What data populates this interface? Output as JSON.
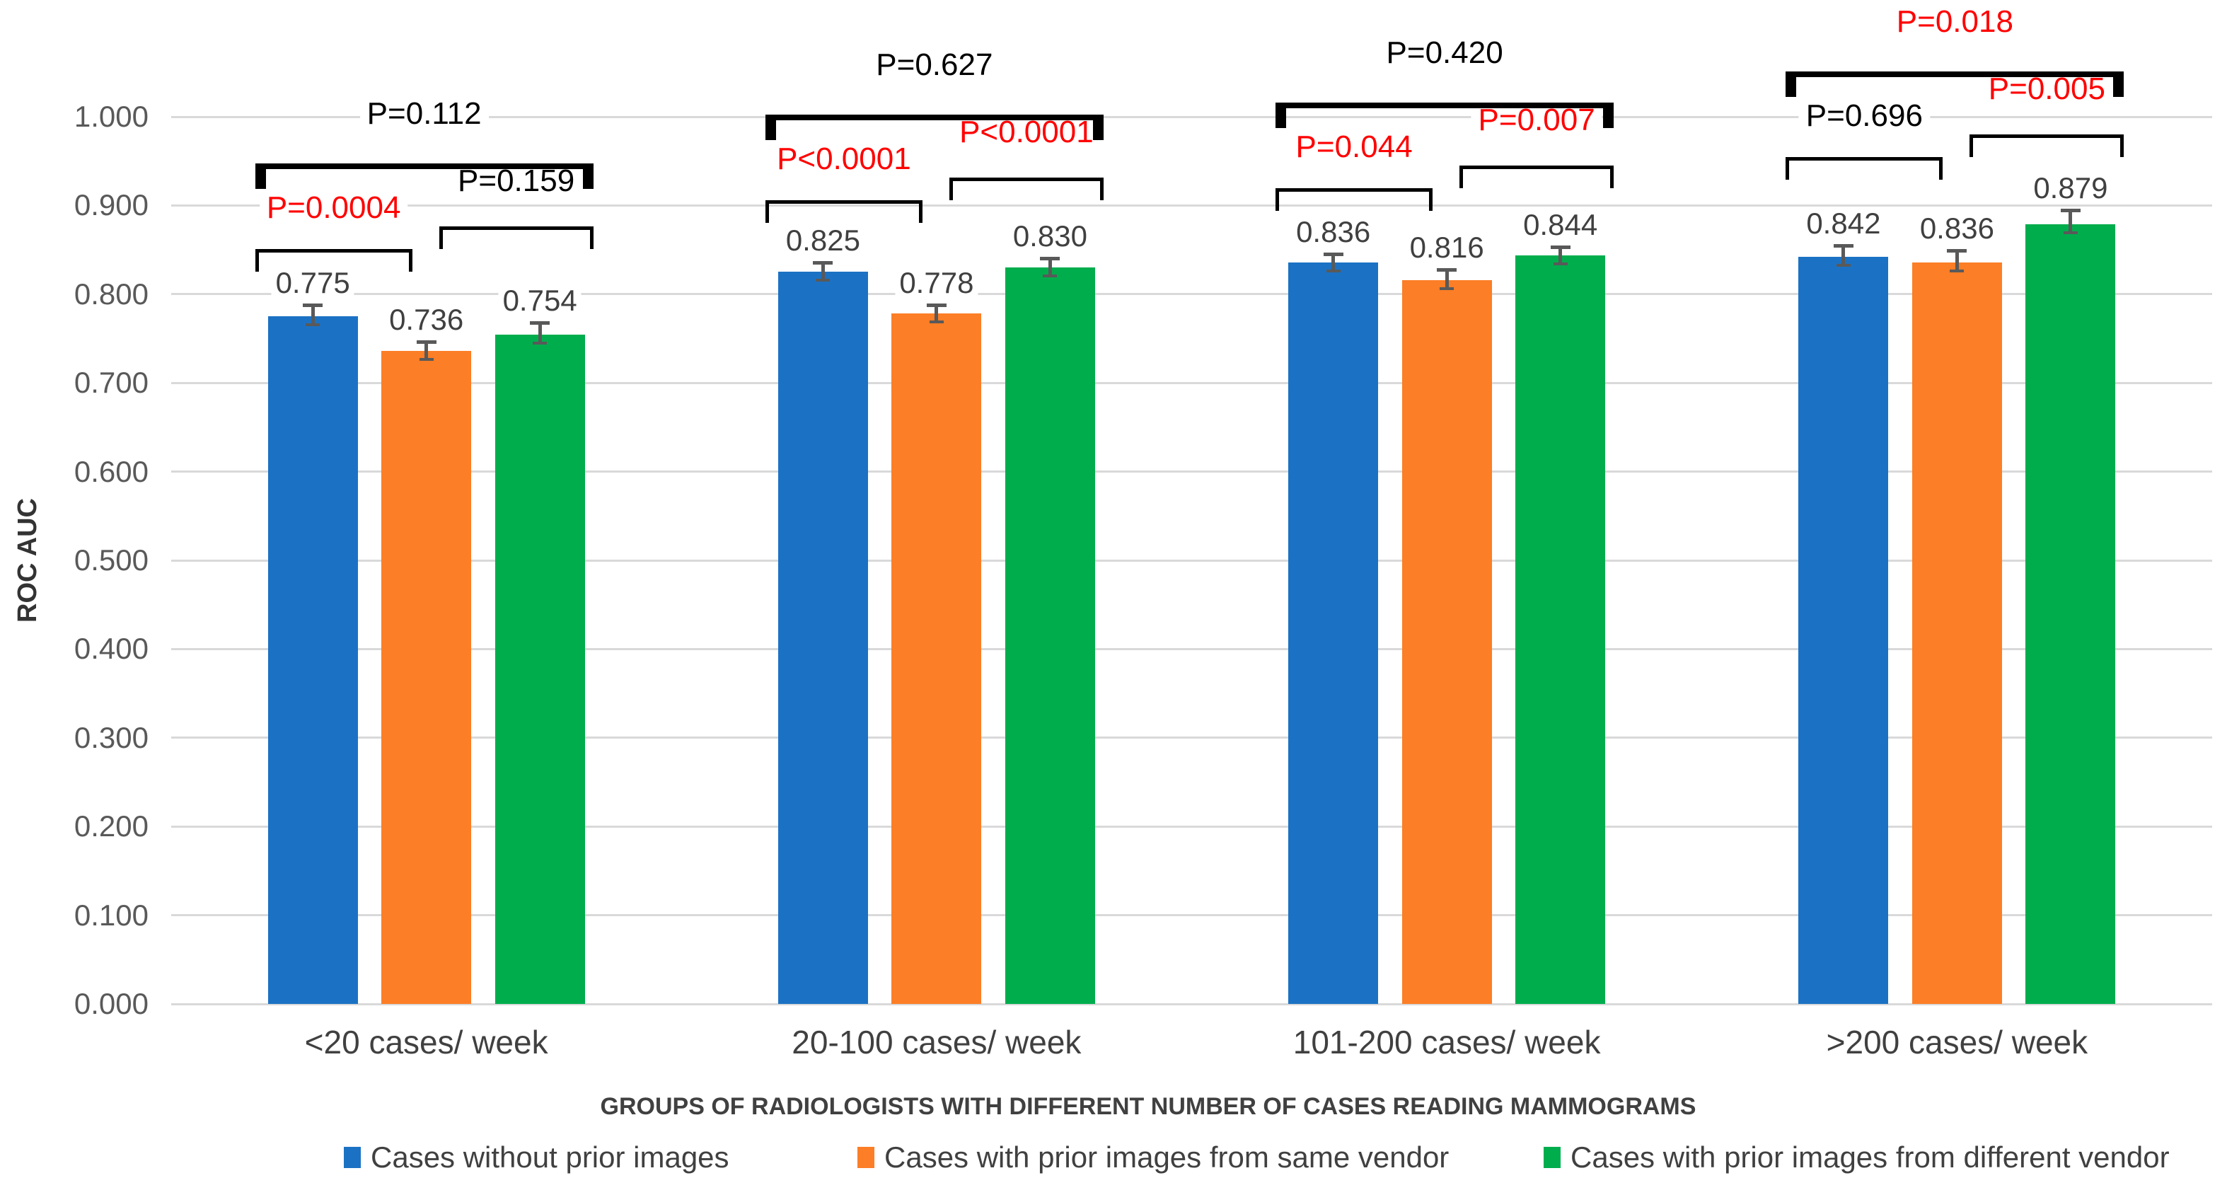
{
  "figure": {
    "background": "#FFFFFF"
  },
  "chart_data": {
    "type": "bar",
    "title": "",
    "ylabel": "ROC AUC",
    "xlabel": "GROUPS OF RADIOLOGISTS WITH DIFFERENT NUMBER OF CASES READING MAMMOGRAMS",
    "ylim": [
      0,
      1
    ],
    "ytick_step": 0.1,
    "ytick_labels": [
      "0.000",
      "0.100",
      "0.200",
      "0.300",
      "0.400",
      "0.500",
      "0.600",
      "0.700",
      "0.800",
      "0.900",
      "1.000"
    ],
    "grid": true,
    "gridline_color": "#D9D9D9",
    "legend_position": "bottom",
    "categories": [
      "<20 cases/ week",
      "20-100 cases/ week",
      "101-200 cases/ week",
      ">200 cases/ week"
    ],
    "series": [
      {
        "name": "Cases without prior images",
        "color": "#1B72C4",
        "values": [
          0.775,
          0.825,
          0.836,
          0.842
        ],
        "errors": [
          0.011,
          0.009,
          0.008,
          0.011
        ]
      },
      {
        "name": "Cases with prior images from same vendor",
        "color": "#FC7E26",
        "values": [
          0.736,
          0.778,
          0.816,
          0.836
        ],
        "errors": [
          0.009,
          0.008,
          0.01,
          0.012
        ]
      },
      {
        "name": "Cases with prior images from different vendor",
        "color": "#00AD4D",
        "values": [
          0.754,
          0.83,
          0.844,
          0.879
        ],
        "errors": [
          0.012,
          0.009,
          0.008,
          0.014
        ]
      }
    ],
    "p_values": [
      {
        "overall": {
          "text": "P=0.112",
          "color": "#000000"
        },
        "pair_1_2": {
          "text": "P=0.0004",
          "color": "#FF0000"
        },
        "pair_2_3": {
          "text": "P=0.159",
          "color": "#000000"
        }
      },
      {
        "overall": {
          "text": "P=0.627",
          "color": "#000000"
        },
        "pair_1_2": {
          "text": "P<0.0001",
          "color": "#FF0000"
        },
        "pair_2_3": {
          "text": "P<0.0001",
          "color": "#FF0000"
        }
      },
      {
        "overall": {
          "text": "P=0.420",
          "color": "#000000"
        },
        "pair_1_2": {
          "text": "P=0.044",
          "color": "#FF0000"
        },
        "pair_2_3": {
          "text": "P=0.007",
          "color": "#FF0000"
        }
      },
      {
        "overall": {
          "text": "P=0.018",
          "color": "#FF0000"
        },
        "pair_1_2": {
          "text": "P=0.696",
          "color": "#000000"
        },
        "pair_2_3": {
          "text": "P=0.005",
          "color": "#FF0000"
        }
      }
    ],
    "annotation_colors": {
      "significant": "#FF0000",
      "not_significant": "#000000"
    },
    "error_bar_color": "#595959"
  }
}
